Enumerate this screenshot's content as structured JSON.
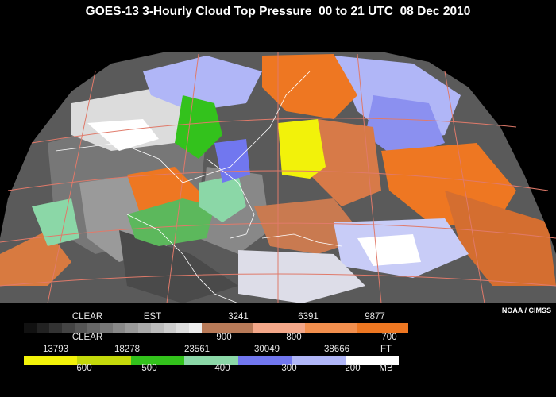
{
  "title": "GOES-13 3-Hourly Cloud Top Pressure  00 to 21 UTC  08 Dec 2010",
  "credit": "NOAA / CIMSS",
  "legend": {
    "row1": {
      "clear": "CLEAR",
      "est": "EST",
      "v1": "3241",
      "v2": "6391",
      "v3": "9877"
    },
    "row2": {
      "clear": "CLEAR",
      "p1": "900",
      "p2": "800",
      "p3": "700"
    },
    "row3": {
      "v1": "13793",
      "v2": "18278",
      "v3": "23561",
      "v4": "30049",
      "v5": "38666",
      "unit": "FT"
    },
    "row4": {
      "p1": "600",
      "p2": "500",
      "p3": "400",
      "p4": "300",
      "p5": "200",
      "unit": "MB"
    }
  },
  "colors": {
    "clear": "#000000",
    "gray_scale": [
      "#111111",
      "#222222",
      "#333333",
      "#444444",
      "#555555",
      "#666666",
      "#777777",
      "#888888",
      "#999999",
      "#aaaaaa",
      "#bbbbbb",
      "#cccccc",
      "#dddddd",
      "#eeeeee"
    ],
    "low_cloud": [
      "#b87a58",
      "#f3a789",
      "#f28f4e",
      "#ee7722"
    ],
    "mid_high_cloud": [
      "#f2f20a",
      "#c4d90b",
      "#33c21c",
      "#8bd7a7",
      "#7177ef",
      "#b0b6f7",
      "#ffffff"
    ]
  }
}
